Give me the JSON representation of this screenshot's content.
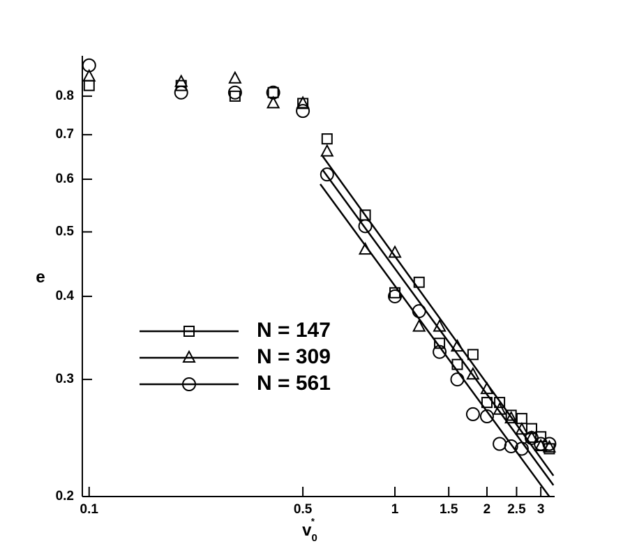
{
  "chart_data": {
    "type": "scatter",
    "xlabel": {
      "base": "v",
      "sub": "0",
      "sup": "*"
    },
    "ylabel": "e",
    "xscale": "log",
    "yscale": "log",
    "xlim": [
      0.095,
      3.33
    ],
    "ylim": [
      0.2,
      0.92
    ],
    "xticks": [
      0.1,
      0.5,
      1,
      1.5,
      2,
      2.5,
      3
    ],
    "yticks": [
      0.2,
      0.3,
      0.4,
      0.5,
      0.6,
      0.7,
      0.8
    ],
    "legend_position": "center-left",
    "series": [
      {
        "name": "N = 147",
        "marker": "square",
        "color": "#000000",
        "x": [
          0.1,
          0.2,
          0.3,
          0.4,
          0.5,
          0.6,
          0.8,
          1.0,
          1.2,
          1.4,
          1.6,
          1.8,
          2.0,
          2.2,
          2.4,
          2.6,
          2.8,
          3.0,
          3.2
        ],
        "values": [
          0.83,
          0.83,
          0.8,
          0.81,
          0.78,
          0.69,
          0.53,
          0.405,
          0.42,
          0.34,
          0.316,
          0.327,
          0.277,
          0.277,
          0.265,
          0.262,
          0.253,
          0.246,
          0.236
        ],
        "fit": {
          "x": [
            0.58,
            3.3
          ],
          "y": [
            0.65,
            0.215
          ]
        }
      },
      {
        "name": "N = 309",
        "marker": "triangle",
        "color": "#000000",
        "x": [
          0.1,
          0.2,
          0.3,
          0.4,
          0.5,
          0.6,
          0.8,
          1.0,
          1.2,
          1.4,
          1.6,
          1.8,
          2.0,
          2.2,
          2.4,
          2.6,
          2.8,
          3.0,
          3.2
        ],
        "values": [
          0.856,
          0.84,
          0.85,
          0.78,
          0.78,
          0.66,
          0.47,
          0.465,
          0.36,
          0.36,
          0.336,
          0.305,
          0.29,
          0.27,
          0.262,
          0.252,
          0.245,
          0.238,
          0.237
        ],
        "fit": {
          "x": [
            0.58,
            3.3
          ],
          "y": [
            0.62,
            0.208
          ]
        }
      },
      {
        "name": "N = 561",
        "marker": "circle",
        "color": "#000000",
        "x": [
          0.1,
          0.2,
          0.3,
          0.4,
          0.5,
          0.6,
          0.8,
          1.0,
          1.2,
          1.4,
          1.6,
          1.8,
          2.0,
          2.2,
          2.4,
          2.6,
          2.8,
          3.0,
          3.2
        ],
        "values": [
          0.89,
          0.81,
          0.81,
          0.81,
          0.76,
          0.61,
          0.51,
          0.4,
          0.38,
          0.33,
          0.3,
          0.266,
          0.264,
          0.24,
          0.238,
          0.236,
          0.245,
          0.24,
          0.24
        ],
        "fit": {
          "x": [
            0.57,
            3.2
          ],
          "y": [
            0.59,
            0.2
          ]
        }
      }
    ]
  }
}
